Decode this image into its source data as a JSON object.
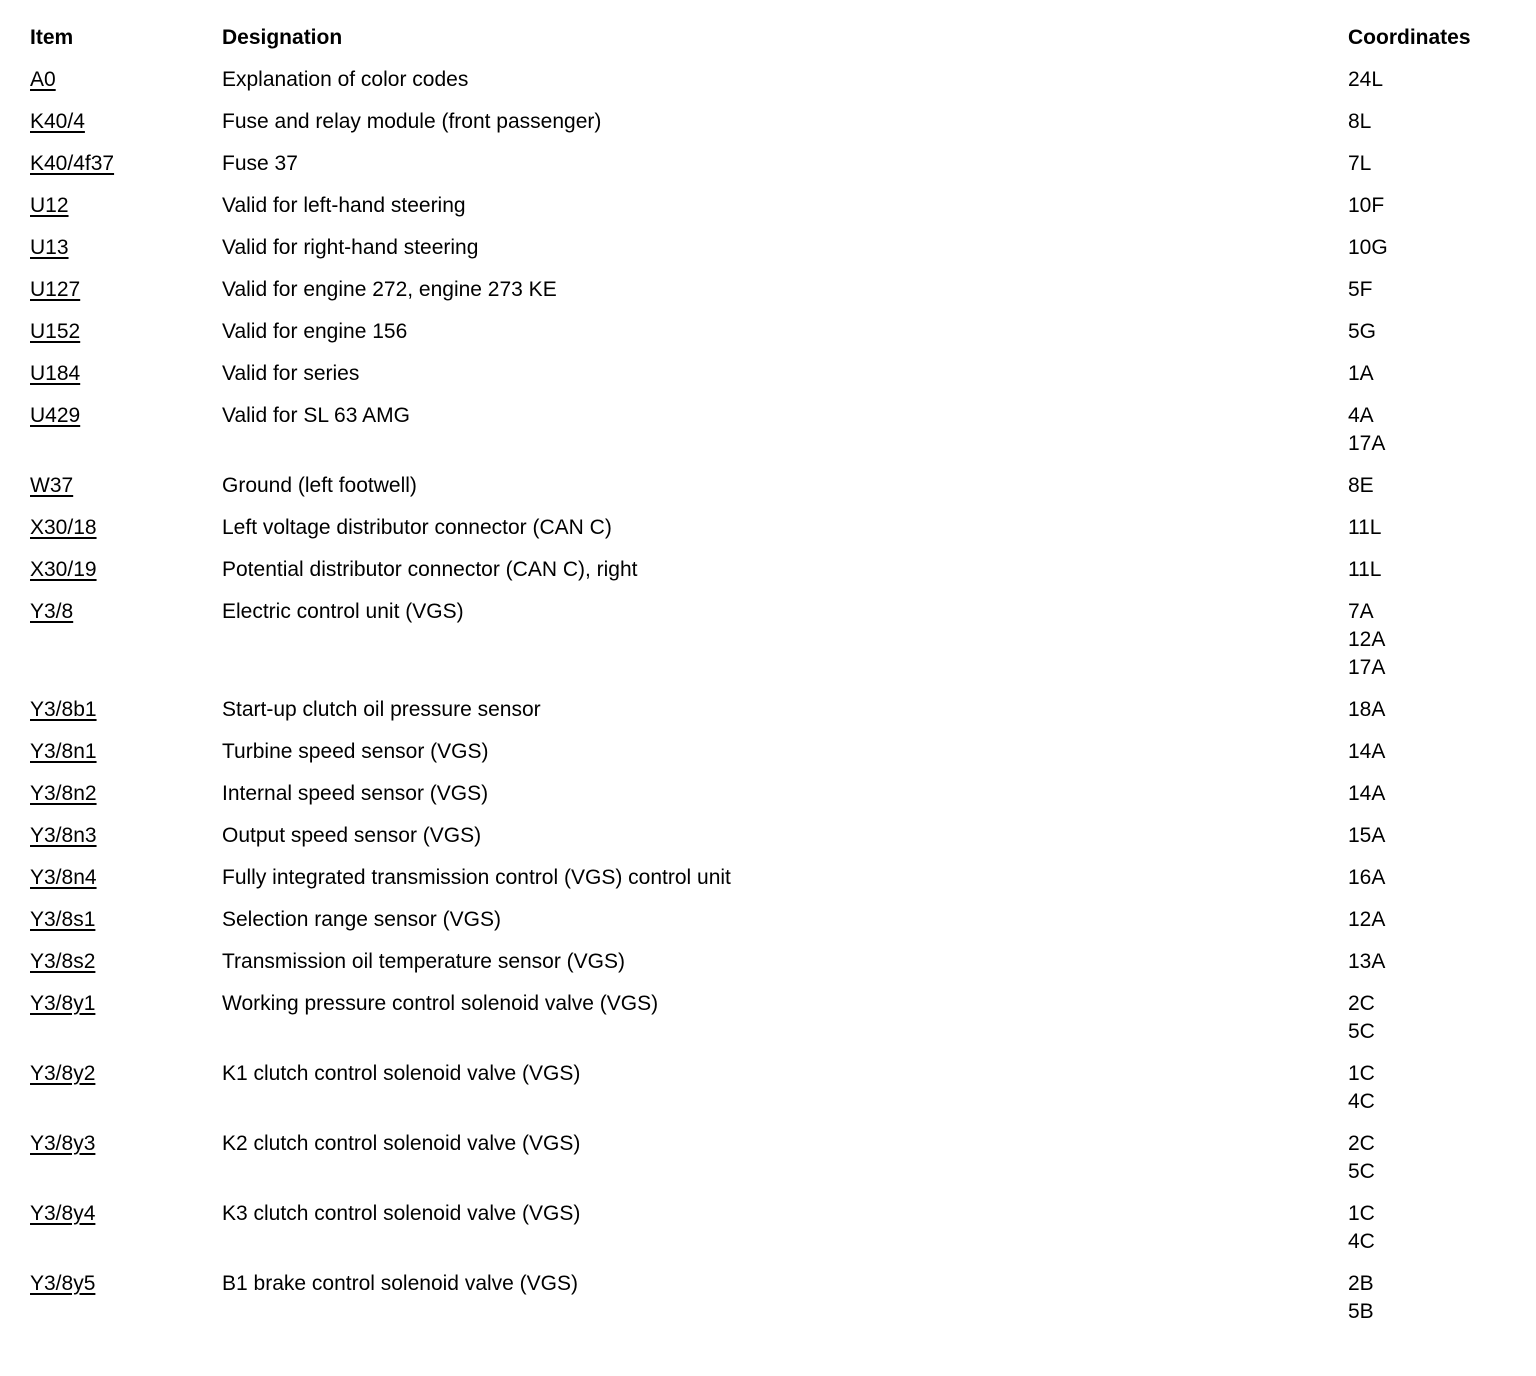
{
  "table": {
    "headers": {
      "item": "Item",
      "designation": "Designation",
      "coordinates": "Coordinates"
    },
    "rows": [
      {
        "item": "A0",
        "designation": "Explanation of color codes",
        "coordinates": [
          "24L"
        ]
      },
      {
        "item": "K40/4",
        "designation": "Fuse and relay module (front passenger)",
        "coordinates": [
          "8L"
        ]
      },
      {
        "item": "K40/4f37",
        "designation": "Fuse 37",
        "coordinates": [
          "7L"
        ]
      },
      {
        "item": "U12",
        "designation": "Valid for left-hand steering",
        "coordinates": [
          "10F"
        ]
      },
      {
        "item": "U13",
        "designation": "Valid for right-hand steering",
        "coordinates": [
          "10G"
        ]
      },
      {
        "item": "U127",
        "designation": "Valid for engine 272, engine 273 KE",
        "coordinates": [
          "5F"
        ]
      },
      {
        "item": "U152",
        "designation": "Valid for engine 156",
        "coordinates": [
          "5G"
        ]
      },
      {
        "item": "U184",
        "designation": "Valid for series",
        "coordinates": [
          "1A"
        ]
      },
      {
        "item": "U429",
        "designation": "Valid for SL 63 AMG",
        "coordinates": [
          "4A",
          "17A"
        ]
      },
      {
        "item": "W37",
        "designation": "Ground (left footwell)",
        "coordinates": [
          "8E"
        ]
      },
      {
        "item": "X30/18",
        "designation": "Left voltage distributor connector (CAN C)",
        "coordinates": [
          "11L"
        ]
      },
      {
        "item": "X30/19",
        "designation": "Potential distributor connector (CAN C), right",
        "coordinates": [
          "11L"
        ]
      },
      {
        "item": "Y3/8",
        "designation": "Electric control unit (VGS)",
        "coordinates": [
          "7A",
          "12A",
          "17A"
        ]
      },
      {
        "item": "Y3/8b1",
        "designation": "Start-up clutch oil pressure sensor",
        "coordinates": [
          "18A"
        ]
      },
      {
        "item": "Y3/8n1",
        "designation": "Turbine speed sensor (VGS)",
        "coordinates": [
          "14A"
        ]
      },
      {
        "item": "Y3/8n2",
        "designation": "Internal speed sensor (VGS)",
        "coordinates": [
          "14A"
        ]
      },
      {
        "item": "Y3/8n3",
        "designation": "Output speed sensor (VGS)",
        "coordinates": [
          "15A"
        ]
      },
      {
        "item": "Y3/8n4",
        "designation": "Fully integrated transmission control (VGS) control unit",
        "coordinates": [
          "16A"
        ]
      },
      {
        "item": "Y3/8s1",
        "designation": "Selection range sensor (VGS)",
        "coordinates": [
          "12A"
        ]
      },
      {
        "item": "Y3/8s2",
        "designation": "Transmission oil temperature sensor (VGS)",
        "coordinates": [
          "13A"
        ]
      },
      {
        "item": "Y3/8y1",
        "designation": "Working pressure control solenoid valve (VGS)",
        "coordinates": [
          "2C",
          "5C"
        ]
      },
      {
        "item": "Y3/8y2",
        "designation": "K1 clutch control solenoid valve (VGS)",
        "coordinates": [
          "1C",
          "4C"
        ]
      },
      {
        "item": "Y3/8y3",
        "designation": "K2 clutch control solenoid valve (VGS)",
        "coordinates": [
          "2C",
          "5C"
        ]
      },
      {
        "item": "Y3/8y4",
        "designation": "K3 clutch control solenoid valve (VGS)",
        "coordinates": [
          "1C",
          "4C"
        ]
      },
      {
        "item": "Y3/8y5",
        "designation": "B1 brake control solenoid valve (VGS)",
        "coordinates": [
          "2B",
          "5B"
        ]
      }
    ],
    "text_color": "#000000",
    "background_color": "#ffffff"
  }
}
